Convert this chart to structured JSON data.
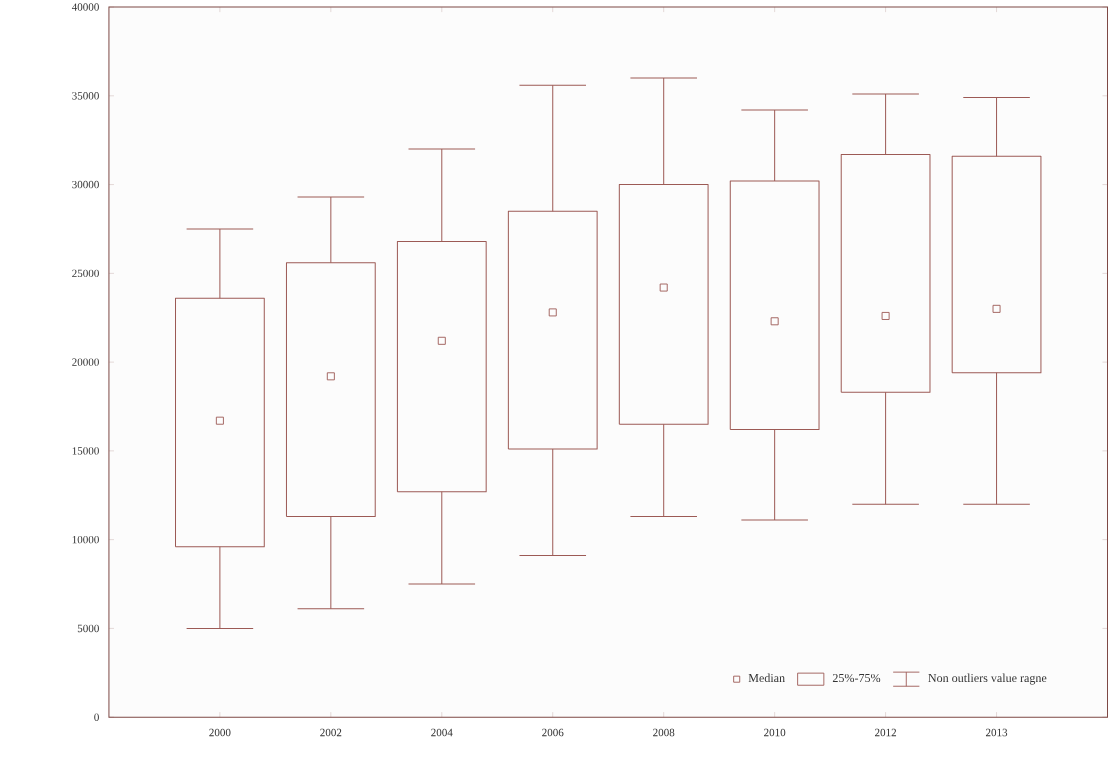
{
  "chart_data": {
    "type": "box",
    "categories": [
      "2000",
      "2002",
      "2004",
      "2006",
      "2008",
      "2010",
      "2012",
      "2013"
    ],
    "boxes": [
      {
        "low": 5000,
        "q1": 9600,
        "median": 16700,
        "q3": 23600,
        "high": 27500
      },
      {
        "low": 6100,
        "q1": 11300,
        "median": 19200,
        "q3": 25600,
        "high": 29300
      },
      {
        "low": 7500,
        "q1": 12700,
        "median": 21200,
        "q3": 26800,
        "high": 32000
      },
      {
        "low": 9100,
        "q1": 15100,
        "median": 22800,
        "q3": 28500,
        "high": 35600
      },
      {
        "low": 11300,
        "q1": 16500,
        "median": 24200,
        "q3": 30000,
        "high": 36000
      },
      {
        "low": 11100,
        "q1": 16200,
        "median": 22300,
        "q3": 30200,
        "high": 34200
      },
      {
        "low": 12000,
        "q1": 18300,
        "median": 22600,
        "q3": 31700,
        "high": 35100
      },
      {
        "low": 12000,
        "q1": 19400,
        "median": 23000,
        "q3": 31600,
        "high": 34900
      }
    ],
    "color": "#9c5a55",
    "marker": "square",
    "ylim": [
      0,
      40000
    ],
    "yticks": [
      0,
      5000,
      10000,
      15000,
      20000,
      25000,
      30000,
      35000,
      40000
    ],
    "annotations": [
      "Median",
      "25%-75%",
      "Non outliers value ragne"
    ]
  }
}
